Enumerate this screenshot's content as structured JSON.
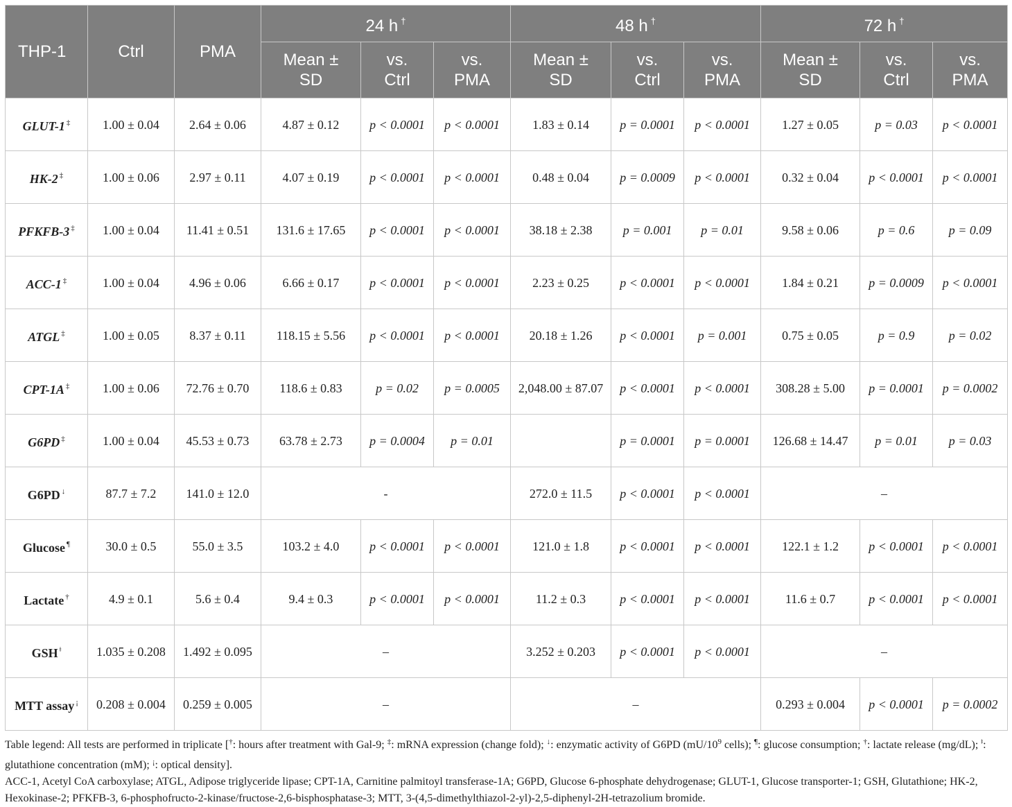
{
  "header": {
    "row_label": "THP-1",
    "ctrl": "Ctrl",
    "pma": "PMA",
    "dagger": "†",
    "groups": [
      "24 h",
      "48 h",
      "72 h"
    ],
    "sub": {
      "mean_a": "Mean ±",
      "mean_b": "SD",
      "vs_a": "vs.",
      "ctrl": "Ctrl",
      "pma": "PMA"
    }
  },
  "rows": [
    {
      "label": "GLUT-1",
      "mark": "‡",
      "ctrl": "1.00 ± 0.04",
      "pma": "2.64 ± 0.06",
      "h24": [
        "4.87 ± 0.12",
        "p < 0.0001",
        "p < 0.0001"
      ],
      "h48": [
        "1.83 ± 0.14",
        "p = 0.0001",
        "p < 0.0001"
      ],
      "h72": [
        "1.27 ± 0.05",
        "p = 0.03",
        "p < 0.0001"
      ]
    },
    {
      "label": "HK-2",
      "mark": "‡",
      "ctrl": "1.00 ± 0.06",
      "pma": "2.97 ± 0.11",
      "h24": [
        "4.07 ± 0.19",
        "p < 0.0001",
        "p < 0.0001"
      ],
      "h48": [
        "0.48 ± 0.04",
        "p = 0.0009",
        "p < 0.0001"
      ],
      "h72": [
        "0.32 ± 0.04",
        "p < 0.0001",
        "p < 0.0001"
      ]
    },
    {
      "label": "PFKFB-3",
      "mark": "‡",
      "ctrl": "1.00 ± 0.04",
      "pma": "11.41 ± 0.51",
      "h24": [
        "131.6 ± 17.65",
        "p < 0.0001",
        "p < 0.0001"
      ],
      "h48": [
        "38.18 ± 2.38",
        "p = 0.001",
        "p = 0.01"
      ],
      "h72": [
        "9.58 ± 0.06",
        "p = 0.6",
        "p = 0.09"
      ]
    },
    {
      "label": "ACC-1",
      "mark": "‡",
      "ctrl": "1.00 ± 0.04",
      "pma": "4.96 ± 0.06",
      "h24": [
        "6.66 ± 0.17",
        "p < 0.0001",
        "p < 0.0001"
      ],
      "h48": [
        "2.23 ± 0.25",
        "p < 0.0001",
        "p < 0.0001"
      ],
      "h72": [
        "1.84 ± 0.21",
        "p = 0.0009",
        "p < 0.0001"
      ]
    },
    {
      "label": "ATGL",
      "mark": "‡",
      "ctrl": "1.00 ± 0.05",
      "pma": "8.37 ± 0.11",
      "h24": [
        "118.15 ± 5.56",
        "p < 0.0001",
        "p < 0.0001"
      ],
      "h48": [
        "20.18 ± 1.26",
        "p < 0.0001",
        "p = 0.001"
      ],
      "h72": [
        "0.75 ± 0.05",
        "p = 0.9",
        "p = 0.02"
      ]
    },
    {
      "label": "CPT-1A",
      "mark": "‡",
      "ctrl": "1.00 ± 0.06",
      "pma": "72.76 ± 0.70",
      "h24": [
        "118.6 ± 0.83",
        "p = 0.02",
        "p = 0.0005"
      ],
      "h48": [
        "2,048.00 ± 87.07",
        "p < 0.0001",
        "p < 0.0001"
      ],
      "h72": [
        "308.28 ± 5.00",
        "p = 0.0001",
        "p = 0.0002"
      ]
    },
    {
      "label": "G6PD",
      "mark": "‡",
      "ctrl": "1.00 ± 0.04",
      "pma": "45.53 ± 0.73",
      "h24": [
        "63.78 ± 2.73",
        "p = 0.0004",
        "p = 0.01"
      ],
      "h48": [
        "",
        "p = 0.0001",
        "p = 0.0001"
      ],
      "h72": [
        "126.68 ± 14.47",
        "p = 0.01",
        "p = 0.03"
      ]
    },
    {
      "label": "G6PD",
      "mark": "↓",
      "ctrl": "87.7 ± 7.2",
      "pma": "141.0 ± 12.0",
      "h24_span": "-",
      "h48": [
        "272.0 ± 11.5",
        "p < 0.0001",
        "p < 0.0001"
      ],
      "h72_span": "–"
    },
    {
      "label": "Glucose",
      "mark": "¶",
      "ctrl": "30.0 ± 0.5",
      "pma": "55.0 ± 3.5",
      "h24": [
        "103.2 ± 4.0",
        "p < 0.0001",
        "p < 0.0001"
      ],
      "h48": [
        "121.0 ± 1.8",
        "p < 0.0001",
        "p < 0.0001"
      ],
      "h72": [
        "122.1 ± 1.2",
        "p < 0.0001",
        "p < 0.0001"
      ]
    },
    {
      "label": "Lactate",
      "mark": "†",
      "ctrl": "4.9 ± 0.1",
      "pma": "5.6 ± 0.4",
      "h24": [
        "9.4 ± 0.3",
        "p < 0.0001",
        "p < 0.0001"
      ],
      "h48": [
        "11.2 ± 0.3",
        "p < 0.0001",
        "p < 0.0001"
      ],
      "h72": [
        "11.6 ± 0.7",
        "p < 0.0001",
        "p < 0.0001"
      ]
    },
    {
      "label": "GSH",
      "mark": "ǂ",
      "ctrl": "1.035 ± 0.208",
      "pma": "1.492 ± 0.095",
      "h24_span": "–",
      "h48": [
        "3.252 ± 0.203",
        "p < 0.0001",
        "p < 0.0001"
      ],
      "h72_span": "–"
    },
    {
      "label": "MTT assay",
      "mark": "¡",
      "ctrl": "0.208 ± 0.004",
      "pma": "0.259 ± 0.005",
      "h24_span": "–",
      "h48_span": "–",
      "h72": [
        "0.293 ± 0.004",
        "p < 0.0001",
        "p = 0.0002"
      ]
    }
  ],
  "legend": {
    "line1_parts": [
      "Table legend: All tests are performed in triplicate [",
      "†",
      ": hours after treatment with Gal-9; ",
      "‡",
      ": mRNA expression (change fold); ",
      "↓",
      ": enzymatic activity of G6PD (mU/10",
      "9",
      " cells); ",
      "¶",
      ": glucose consumption; ",
      "†",
      ": lactate release (mg/dL); ",
      "ǂ",
      ": glutathione concentration (mM); ",
      "¡",
      ": optical density]."
    ],
    "line2": "ACC-1, Acetyl CoA carboxylase; ATGL, Adipose triglyceride lipase; CPT-1A, Carnitine palmitoyl transferase-1A; G6PD, Glucose 6-phosphate dehydrogenase; GLUT-1, Glucose transporter-1; GSH, Glutathione; HK-2, Hexokinase-2; PFKFB-3, 6-phosphofructo-2-kinase/fructose-2,6-bisphosphatase-3; MTT, 3-(4,5-dimethylthiazol-2-yl)-2,5-diphenyl-2H-tetrazolium bromide."
  }
}
